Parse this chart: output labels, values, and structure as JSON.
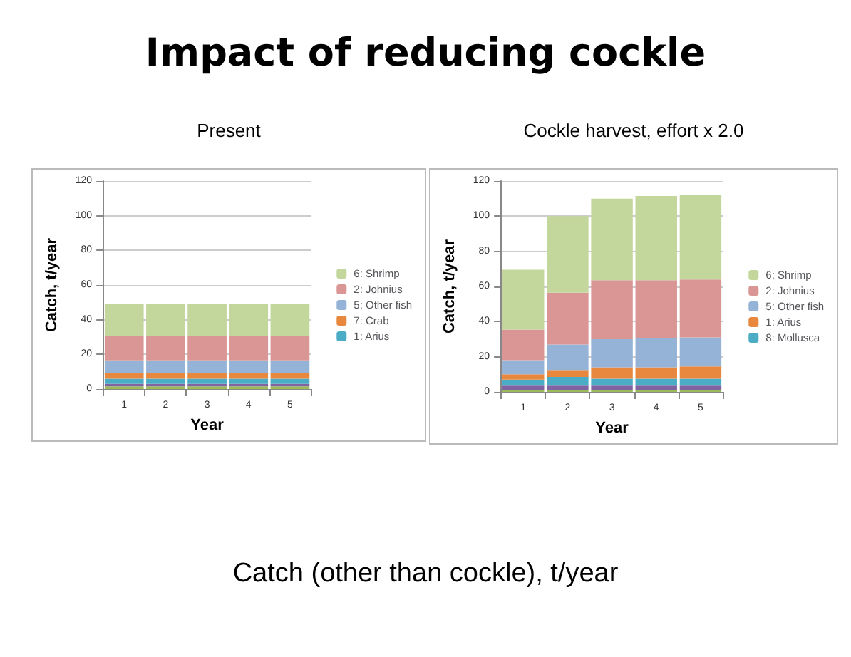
{
  "chart_data": [
    {
      "type": "bar",
      "title": "Present",
      "xlabel": "Year",
      "ylabel": "Catch, t/year",
      "categories": [
        "1",
        "2",
        "3",
        "4",
        "5"
      ],
      "stacked": true,
      "ylim": [
        0,
        120
      ],
      "yticks": [
        0,
        20,
        40,
        60,
        80,
        100,
        120
      ],
      "grid": "y",
      "legend": "right",
      "annotations": [
        "Impact of reducing cockle",
        "Catch (other than cockle), t/year"
      ],
      "series": [
        {
          "color": "#9bbb59",
          "values": [
            1.5,
            1.5,
            1.5,
            1.5,
            1.5
          ]
        },
        {
          "color": "#8064a2",
          "values": [
            1.5,
            1.5,
            1.5,
            1.5,
            1.5
          ]
        },
        {
          "name": "1: Arius",
          "color": "#4bacc6",
          "values": [
            3,
            3,
            3,
            3,
            3
          ]
        },
        {
          "name": "7: Crab",
          "color": "#e8883e",
          "values": [
            3.5,
            3.5,
            3.5,
            3.5,
            3.5
          ]
        },
        {
          "name": "5: Other fish",
          "color": "#95b3d7",
          "values": [
            7,
            7,
            7,
            7,
            7
          ]
        },
        {
          "name": "2: Johnius",
          "color": "#d99694",
          "values": [
            14,
            14,
            14,
            14,
            14
          ]
        },
        {
          "name": "6: Shrimp",
          "color": "#c3d69b",
          "values": [
            18.5,
            18.5,
            18.5,
            18.5,
            18.5
          ]
        }
      ]
    },
    {
      "type": "bar",
      "title": "Cockle harvest, effort x 2.0",
      "xlabel": "Year",
      "ylabel": "Catch, t/year",
      "categories": [
        "1",
        "2",
        "3",
        "4",
        "5"
      ],
      "stacked": true,
      "ylim": [
        0,
        120
      ],
      "yticks": [
        0,
        20,
        40,
        60,
        80,
        100,
        120
      ],
      "grid": "y",
      "legend": "right",
      "series": [
        {
          "color": "#9bbb59",
          "values": [
            1,
            1,
            1,
            1,
            1
          ]
        },
        {
          "color": "#8064a2",
          "values": [
            3,
            3,
            3,
            3,
            3
          ]
        },
        {
          "name": "8: Mollusca",
          "color": "#4bacc6",
          "values": [
            3,
            4.5,
            3.5,
            3.5,
            3.5
          ]
        },
        {
          "name": "1: Arius",
          "color": "#e8883e",
          "values": [
            3,
            4,
            6.5,
            6.5,
            7
          ]
        },
        {
          "name": "5: Other fish",
          "color": "#95b3d7",
          "values": [
            8,
            14.5,
            16,
            16.5,
            16.5
          ]
        },
        {
          "name": "2: Johnius",
          "color": "#d99694",
          "values": [
            17.5,
            29.5,
            33.5,
            33,
            33
          ]
        },
        {
          "name": "6: Shrimp",
          "color": "#c3d69b",
          "values": [
            34,
            43.5,
            46.5,
            48,
            48
          ]
        }
      ]
    }
  ]
}
